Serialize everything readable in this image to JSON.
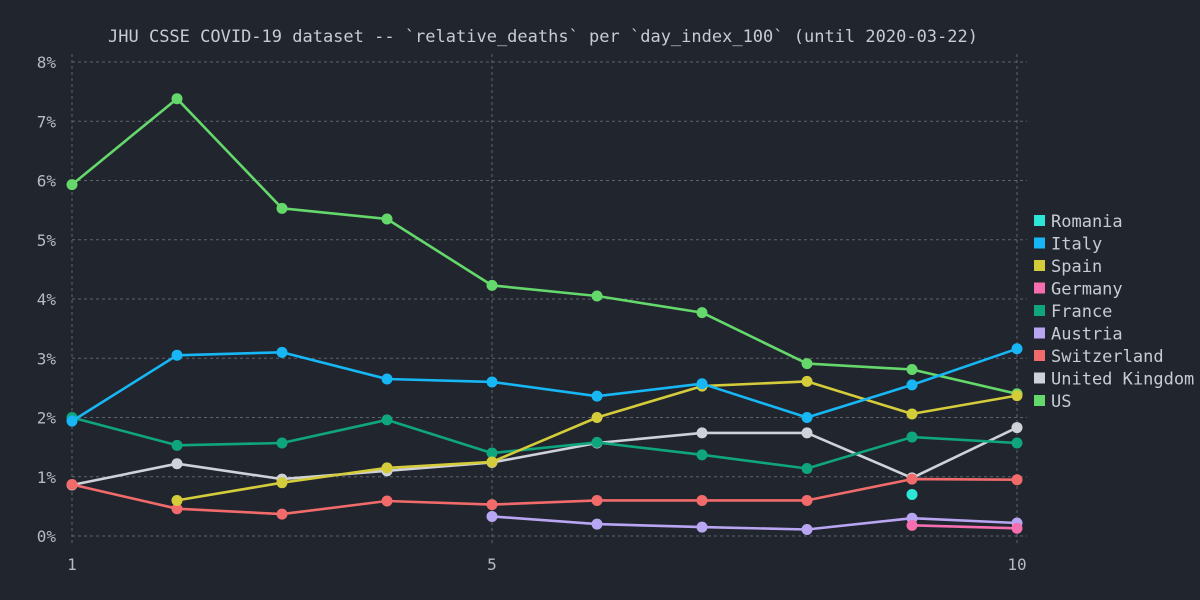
{
  "chart_data": {
    "type": "line",
    "title": "JHU CSSE COVID-19 dataset -- `relative_deaths` per `day_index_100` (until 2020-03-22)",
    "xlabel": "",
    "ylabel": "",
    "x_ticks": [
      1,
      5,
      10
    ],
    "x_tick_labels": [
      "1",
      "5",
      "10"
    ],
    "y_ticks": [
      0,
      1,
      2,
      3,
      4,
      5,
      6,
      7,
      8
    ],
    "y_tick_labels": [
      "0%",
      "1%",
      "2%",
      "3%",
      "4%",
      "5%",
      "6%",
      "7%",
      "8%"
    ],
    "xlim": [
      1,
      10
    ],
    "ylim": [
      0,
      8
    ],
    "grid": true,
    "legend_position": "right",
    "series": [
      {
        "name": "Romania",
        "color": "#2ee6d6",
        "x": [
          9
        ],
        "y": [
          0.7
        ]
      },
      {
        "name": "Italy",
        "color": "#17b6f5",
        "x": [
          1,
          2,
          3,
          4,
          5,
          6,
          7,
          8,
          9,
          10
        ],
        "y": [
          1.94,
          3.05,
          3.1,
          2.65,
          2.6,
          2.36,
          2.57,
          2.0,
          2.55,
          3.16
        ]
      },
      {
        "name": "Spain",
        "color": "#d4cc3a",
        "x": [
          2,
          3,
          4,
          5,
          6,
          7,
          8,
          9,
          10
        ],
        "y": [
          0.6,
          0.9,
          1.15,
          1.25,
          2.0,
          2.53,
          2.61,
          2.06,
          2.37
        ]
      },
      {
        "name": "Germany",
        "color": "#f56fb0",
        "x": [
          9,
          10
        ],
        "y": [
          0.18,
          0.13
        ]
      },
      {
        "name": "France",
        "color": "#0fa57d",
        "x": [
          1,
          2,
          3,
          4,
          5,
          6,
          7,
          8,
          9,
          10
        ],
        "y": [
          2.0,
          1.53,
          1.57,
          1.96,
          1.4,
          1.58,
          1.37,
          1.14,
          1.67,
          1.57
        ]
      },
      {
        "name": "Austria",
        "color": "#b9a6f2",
        "x": [
          5,
          6,
          7,
          8,
          9,
          10
        ],
        "y": [
          0.33,
          0.2,
          0.15,
          0.11,
          0.3,
          0.22
        ]
      },
      {
        "name": "Switzerland",
        "color": "#f26b6b",
        "x": [
          1,
          2,
          3,
          4,
          5,
          6,
          7,
          8,
          9,
          10
        ],
        "y": [
          0.87,
          0.46,
          0.37,
          0.59,
          0.53,
          0.6,
          0.6,
          0.6,
          0.96,
          0.95
        ]
      },
      {
        "name": "United Kingdom",
        "color": "#cfd2d8",
        "x": [
          1,
          2,
          3,
          4,
          5,
          6,
          7,
          8,
          9,
          10
        ],
        "y": [
          0.86,
          1.22,
          0.96,
          1.1,
          1.24,
          1.57,
          1.74,
          1.74,
          0.98,
          1.83
        ]
      },
      {
        "name": "US",
        "color": "#65d86b",
        "x": [
          1,
          2,
          3,
          4,
          5,
          6,
          7,
          8,
          9,
          10
        ],
        "y": [
          5.93,
          7.38,
          5.53,
          5.35,
          4.23,
          4.05,
          3.77,
          2.91,
          2.81,
          2.4
        ]
      }
    ]
  }
}
